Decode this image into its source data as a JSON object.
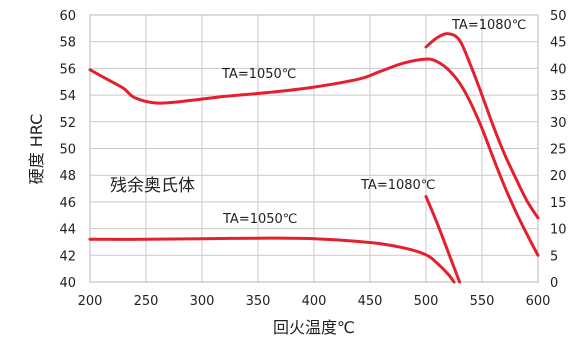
{
  "chart_data": {
    "type": "line",
    "xlabel": "回火温度℃",
    "ylabel": "硬度 HRC",
    "xlim": [
      200,
      600
    ],
    "ylim_left": [
      40,
      60
    ],
    "ylim_right": [
      0,
      50
    ],
    "x_ticks": [
      200,
      250,
      300,
      350,
      400,
      450,
      500,
      550,
      600
    ],
    "y_ticks_left": [
      40,
      42,
      44,
      46,
      48,
      50,
      52,
      54,
      56,
      58,
      60
    ],
    "y_ticks_right": [
      0,
      5,
      10,
      15,
      20,
      25,
      30,
      35,
      40,
      45,
      50
    ],
    "grid": true,
    "annotations": [
      {
        "id": "hard_1050",
        "text": "TA=1050℃"
      },
      {
        "id": "hard_1080",
        "text": "TA=1080℃"
      },
      {
        "id": "ra_label",
        "text": "残余奥氏体"
      },
      {
        "id": "ra_1080",
        "text": "TA=1080℃"
      },
      {
        "id": "ra_1050",
        "text": "TA=1050℃"
      }
    ],
    "series": [
      {
        "axis": "left",
        "color": "#e4202f",
        "x": [
          200,
          215,
          230,
          240,
          260,
          290,
          320,
          360,
          400,
          440,
          460,
          480,
          500,
          510,
          520,
          530,
          540,
          550,
          560,
          570,
          580,
          590,
          600
        ],
        "y": [
          55.9,
          55.2,
          54.5,
          53.8,
          53.4,
          53.6,
          53.9,
          54.2,
          54.6,
          55.2,
          55.8,
          56.4,
          56.7,
          56.5,
          55.9,
          54.9,
          53.4,
          51.5,
          49.3,
          47.2,
          45.3,
          43.6,
          42.0
        ]
      },
      {
        "axis": "left",
        "color": "#e4202f",
        "x": [
          500,
          510,
          520,
          530,
          540,
          550,
          560,
          570,
          580,
          590,
          600
        ],
        "y": [
          57.6,
          58.3,
          58.6,
          58.1,
          56.2,
          54.0,
          51.7,
          49.6,
          47.8,
          46.1,
          44.8
        ]
      },
      {
        "axis": "right",
        "color": "#e4202f",
        "x": [
          200,
          250,
          300,
          350,
          400,
          450,
          480,
          500,
          510,
          520,
          525
        ],
        "y": [
          8.0,
          8.0,
          8.1,
          8.2,
          8.1,
          7.4,
          6.4,
          5.1,
          3.5,
          1.4,
          0.0
        ]
      },
      {
        "axis": "right",
        "color": "#e4202f",
        "x": [
          500,
          510,
          520,
          530
        ],
        "y": [
          16.0,
          11.0,
          5.5,
          0.0
        ]
      }
    ]
  }
}
